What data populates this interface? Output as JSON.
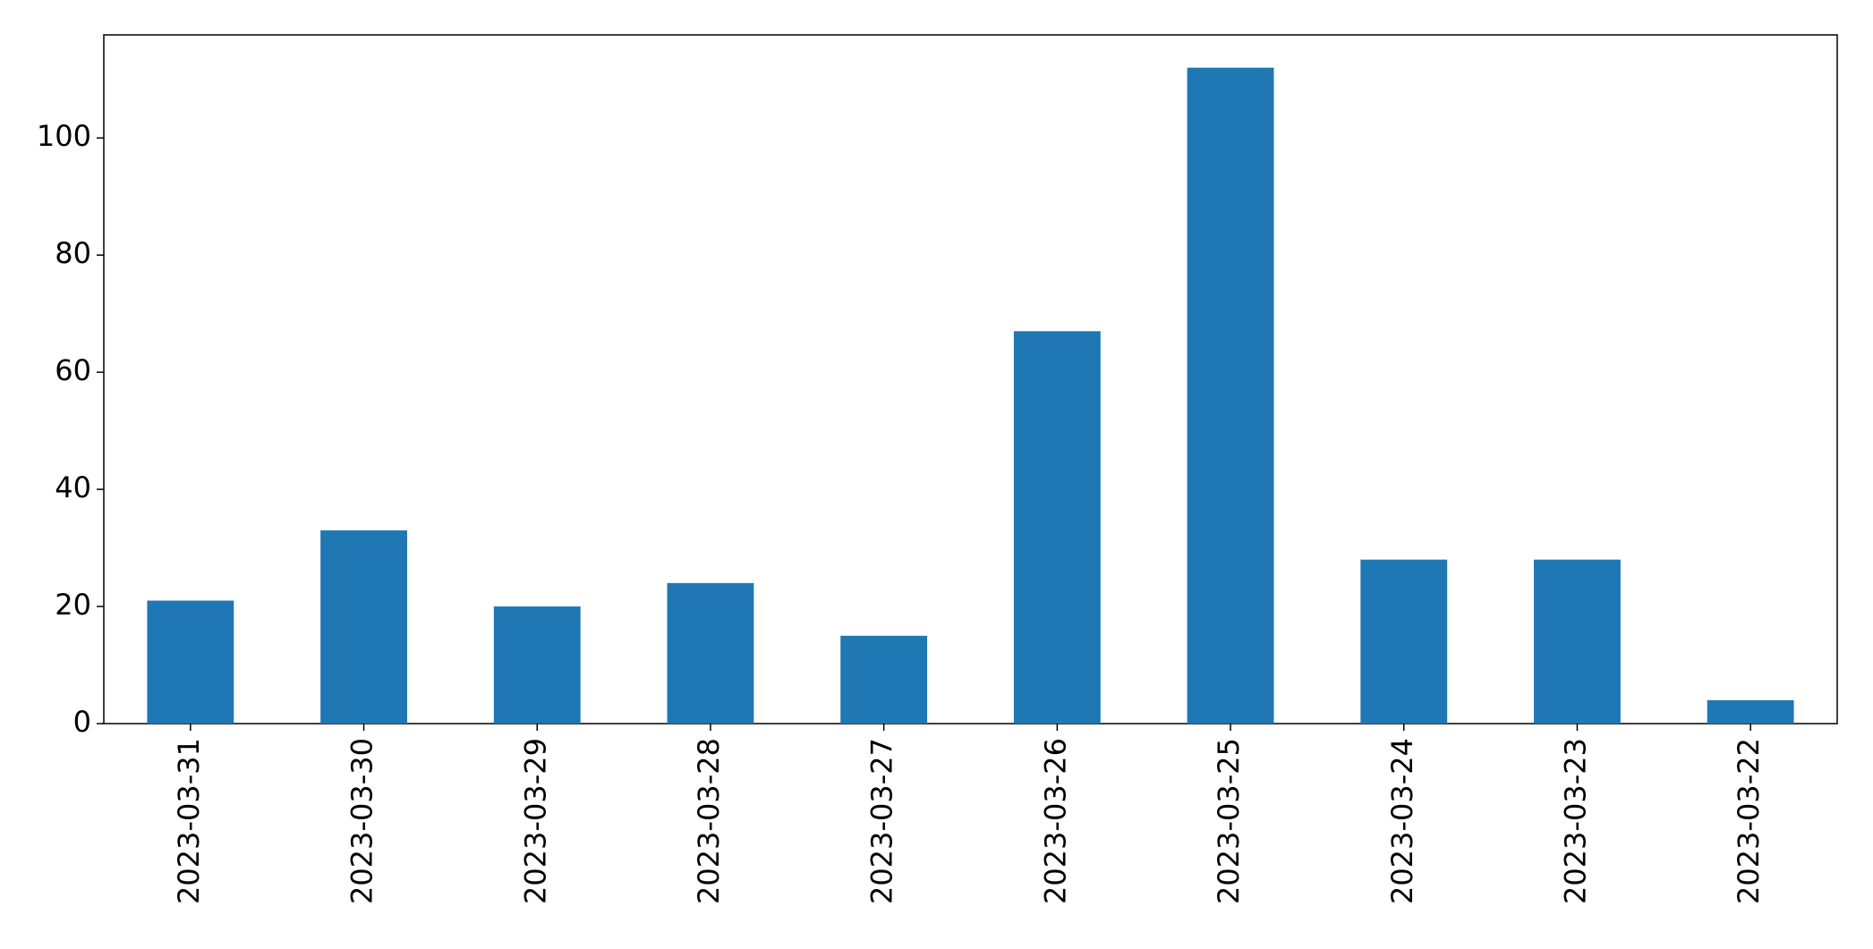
{
  "chart_data": {
    "type": "bar",
    "categories": [
      "2023-03-31",
      "2023-03-30",
      "2023-03-29",
      "2023-03-28",
      "2023-03-27",
      "2023-03-26",
      "2023-03-25",
      "2023-03-24",
      "2023-03-23",
      "2023-03-22"
    ],
    "values": [
      21,
      33,
      20,
      24,
      15,
      67,
      112,
      28,
      28,
      4
    ],
    "color": "#1f77b4",
    "ylim": [
      0,
      117.6
    ],
    "yticks": [
      0,
      20,
      40,
      60,
      80,
      100
    ],
    "grid": false
  }
}
